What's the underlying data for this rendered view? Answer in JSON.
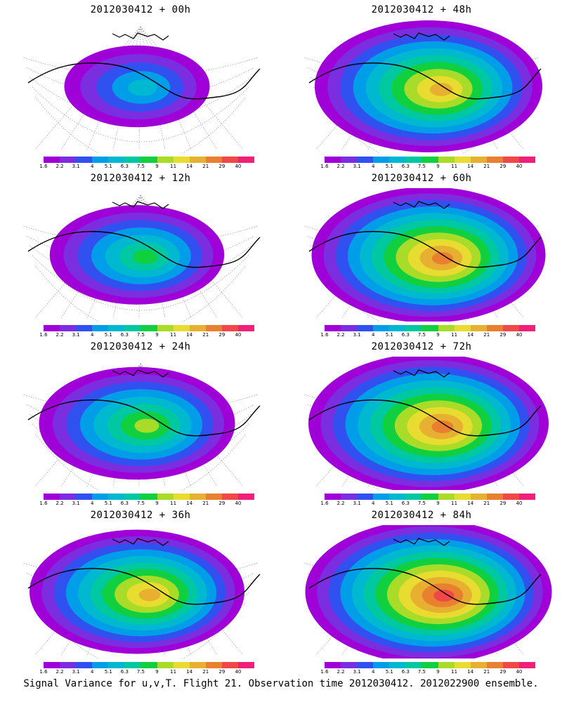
{
  "panels": [
    {
      "title": "2012030412 + 00h",
      "forecast_hour": 0,
      "intensity": 0.15
    },
    {
      "title": "2012030412 + 48h",
      "forecast_hour": 48,
      "intensity": 0.8
    },
    {
      "title": "2012030412 + 12h",
      "forecast_hour": 12,
      "intensity": 0.38
    },
    {
      "title": "2012030412 + 60h",
      "forecast_hour": 60,
      "intensity": 0.85
    },
    {
      "title": "2012030412 + 24h",
      "forecast_hour": 24,
      "intensity": 0.55
    },
    {
      "title": "2012030412 + 72h",
      "forecast_hour": 72,
      "intensity": 0.9
    },
    {
      "title": "2012030412 + 36h",
      "forecast_hour": 36,
      "intensity": 0.7
    },
    {
      "title": "2012030412 + 84h",
      "forecast_hour": 84,
      "intensity": 0.95
    }
  ],
  "colorbar": {
    "labels": [
      "1.6",
      "2.2",
      "3.1",
      "4",
      "5.1",
      "6.3",
      "7.5",
      "9",
      "11",
      "14",
      "21",
      "29",
      "40"
    ],
    "colors": [
      "#a000d8",
      "#7a2ee0",
      "#3050f0",
      "#009ee8",
      "#00b8d0",
      "#00c8a0",
      "#10d040",
      "#a8dc28",
      "#e8dc30",
      "#e8b030",
      "#e88030",
      "#f04848",
      "#f0207a"
    ]
  },
  "caption": "Signal Variance for u,v,T. Flight 21. Observation time 2012030412. 2012022900 ensemble."
}
